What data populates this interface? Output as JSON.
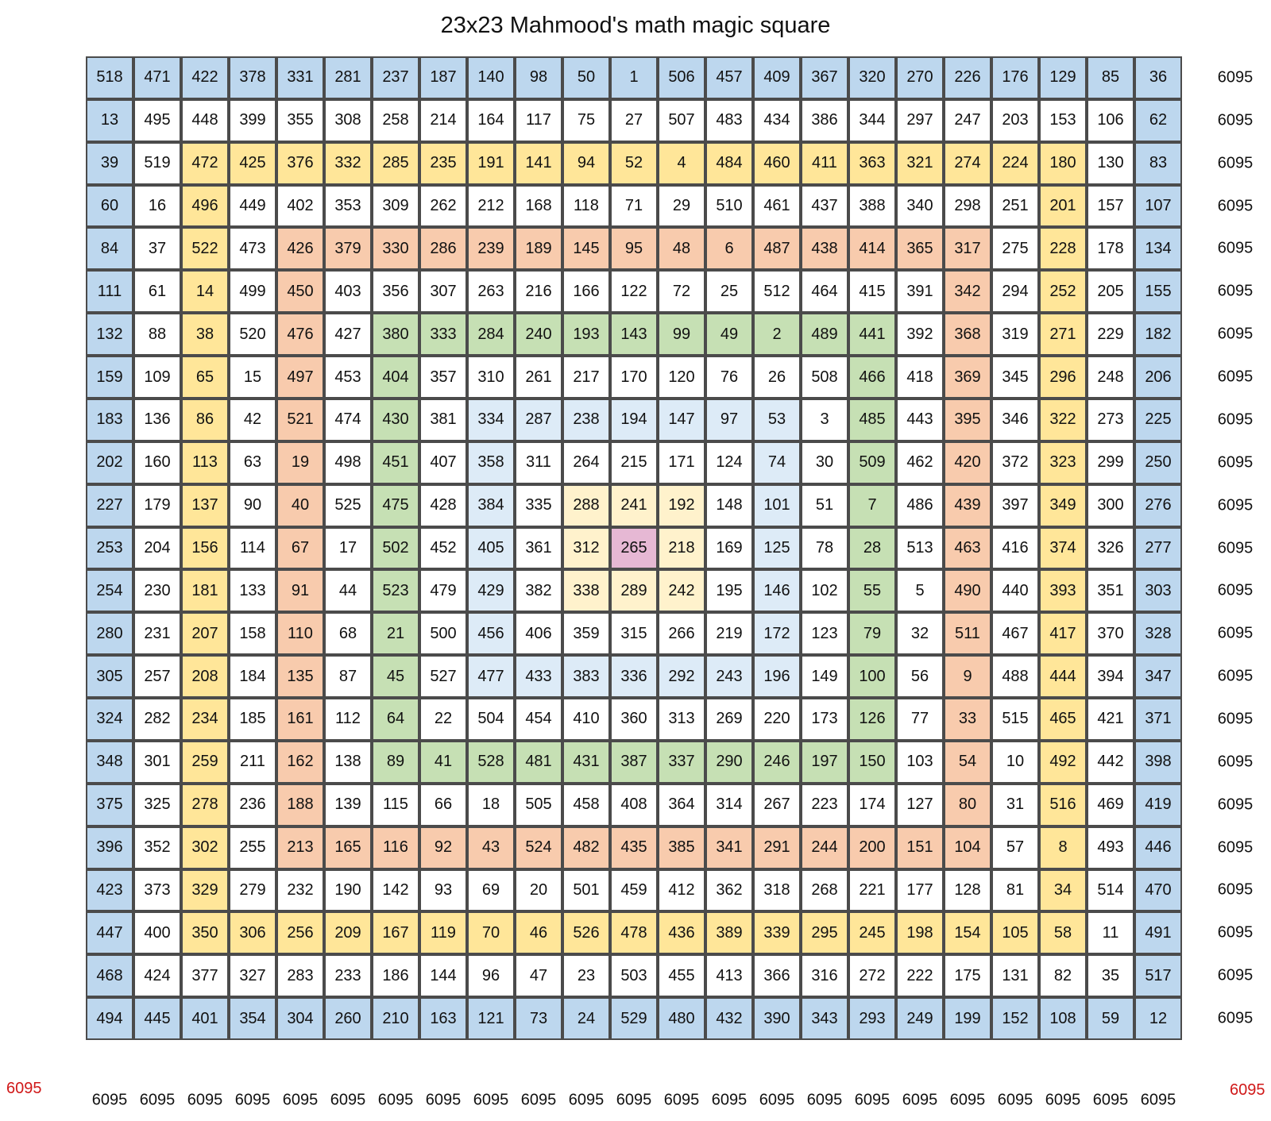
{
  "title": "23x23 Mahmood's math magic square",
  "colors": {
    "blue": "#bdd7ee",
    "white": "#ffffff",
    "yellow": "#ffe699",
    "orange": "#f8cbad",
    "green": "#c6e0b4",
    "lightblue": "#ddebf7",
    "cream": "#fff2cc",
    "pink": "#e6b8d4",
    "diagonal_sum": "#d01818"
  },
  "grid": [
    [
      518,
      471,
      422,
      378,
      331,
      281,
      237,
      187,
      140,
      98,
      50,
      1,
      506,
      457,
      409,
      367,
      320,
      270,
      226,
      176,
      129,
      85,
      36
    ],
    [
      13,
      495,
      448,
      399,
      355,
      308,
      258,
      214,
      164,
      117,
      75,
      27,
      507,
      483,
      434,
      386,
      344,
      297,
      247,
      203,
      153,
      106,
      62
    ],
    [
      39,
      519,
      472,
      425,
      376,
      332,
      285,
      235,
      191,
      141,
      94,
      52,
      4,
      484,
      460,
      411,
      363,
      321,
      274,
      224,
      180,
      130,
      83
    ],
    [
      60,
      16,
      496,
      449,
      402,
      353,
      309,
      262,
      212,
      168,
      118,
      71,
      29,
      510,
      461,
      437,
      388,
      340,
      298,
      251,
      201,
      157,
      107
    ],
    [
      84,
      37,
      522,
      473,
      426,
      379,
      330,
      286,
      239,
      189,
      145,
      95,
      48,
      6,
      487,
      438,
      414,
      365,
      317,
      275,
      228,
      178,
      134
    ],
    [
      111,
      61,
      14,
      499,
      450,
      403,
      356,
      307,
      263,
      216,
      166,
      122,
      72,
      25,
      512,
      464,
      415,
      391,
      342,
      294,
      252,
      205,
      155
    ],
    [
      132,
      88,
      38,
      520,
      476,
      427,
      380,
      333,
      284,
      240,
      193,
      143,
      99,
      49,
      2,
      489,
      441,
      392,
      368,
      319,
      271,
      229,
      182
    ],
    [
      159,
      109,
      65,
      15,
      497,
      453,
      404,
      357,
      310,
      261,
      217,
      170,
      120,
      76,
      26,
      508,
      466,
      418,
      369,
      345,
      296,
      248,
      206
    ],
    [
      183,
      136,
      86,
      42,
      521,
      474,
      430,
      381,
      334,
      287,
      238,
      194,
      147,
      97,
      53,
      3,
      485,
      443,
      395,
      346,
      322,
      273,
      225
    ],
    [
      202,
      160,
      113,
      63,
      19,
      498,
      451,
      407,
      358,
      311,
      264,
      215,
      171,
      124,
      74,
      30,
      509,
      462,
      420,
      372,
      323,
      299,
      250
    ],
    [
      227,
      179,
      137,
      90,
      40,
      525,
      475,
      428,
      384,
      335,
      288,
      241,
      192,
      148,
      101,
      51,
      7,
      486,
      439,
      397,
      349,
      300,
      276
    ],
    [
      253,
      204,
      156,
      114,
      67,
      17,
      502,
      452,
      405,
      361,
      312,
      265,
      218,
      169,
      125,
      78,
      28,
      513,
      463,
      416,
      374,
      326,
      277
    ],
    [
      254,
      230,
      181,
      133,
      91,
      44,
      523,
      479,
      429,
      382,
      338,
      289,
      242,
      195,
      146,
      102,
      55,
      5,
      490,
      440,
      393,
      351,
      303
    ],
    [
      280,
      231,
      207,
      158,
      110,
      68,
      21,
      500,
      456,
      406,
      359,
      315,
      266,
      219,
      172,
      123,
      79,
      32,
      511,
      467,
      417,
      370,
      328
    ],
    [
      305,
      257,
      208,
      184,
      135,
      87,
      45,
      527,
      477,
      433,
      383,
      336,
      292,
      243,
      196,
      149,
      100,
      56,
      9,
      488,
      444,
      394,
      347
    ],
    [
      324,
      282,
      234,
      185,
      161,
      112,
      64,
      22,
      504,
      454,
      410,
      360,
      313,
      269,
      220,
      173,
      126,
      77,
      33,
      515,
      465,
      421,
      371
    ],
    [
      348,
      301,
      259,
      211,
      162,
      138,
      89,
      41,
      528,
      481,
      431,
      387,
      337,
      290,
      246,
      197,
      150,
      103,
      54,
      10,
      492,
      442,
      398
    ],
    [
      375,
      325,
      278,
      236,
      188,
      139,
      115,
      66,
      18,
      505,
      458,
      408,
      364,
      314,
      267,
      223,
      174,
      127,
      80,
      31,
      516,
      469,
      419
    ],
    [
      396,
      352,
      302,
      255,
      213,
      165,
      116,
      92,
      43,
      524,
      482,
      435,
      385,
      341,
      291,
      244,
      200,
      151,
      104,
      57,
      8,
      493,
      446
    ],
    [
      423,
      373,
      329,
      279,
      232,
      190,
      142,
      93,
      69,
      20,
      501,
      459,
      412,
      362,
      318,
      268,
      221,
      177,
      128,
      81,
      34,
      514,
      470
    ],
    [
      447,
      400,
      350,
      306,
      256,
      209,
      167,
      119,
      70,
      46,
      526,
      478,
      436,
      389,
      339,
      295,
      245,
      198,
      154,
      105,
      58,
      11,
      491
    ],
    [
      468,
      424,
      377,
      327,
      283,
      233,
      186,
      144,
      96,
      47,
      23,
      503,
      455,
      413,
      366,
      316,
      272,
      222,
      175,
      131,
      82,
      35,
      517
    ],
    [
      494,
      445,
      401,
      354,
      304,
      260,
      210,
      163,
      121,
      73,
      24,
      529,
      480,
      432,
      390,
      343,
      293,
      249,
      199,
      152,
      108,
      59,
      12
    ]
  ],
  "row_sums": [
    "6095",
    "6095",
    "6095",
    "6095",
    "6095",
    "6095",
    "6095",
    "6095",
    "6095",
    "6095",
    "6095",
    "6095",
    "6095",
    "6095",
    "6095",
    "6095",
    "6095",
    "6095",
    "6095",
    "6095",
    "6095",
    "6095",
    "6095"
  ],
  "col_sums": [
    "6095",
    "6095",
    "6095",
    "6095",
    "6095",
    "6095",
    "6095",
    "6095",
    "6095",
    "6095",
    "6095",
    "6095",
    "6095",
    "6095",
    "6095",
    "6095",
    "6095",
    "6095",
    "6095",
    "6095",
    "6095",
    "6095",
    "6095"
  ],
  "diag_left_sum": "6095",
  "diag_right_sum": "6095"
}
